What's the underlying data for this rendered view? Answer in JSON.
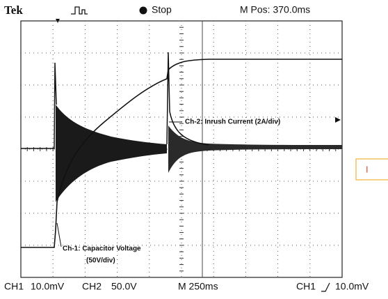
{
  "header": {
    "brand": "Tek",
    "status": "Stop",
    "position": "M Pos: 370.0ms"
  },
  "annotations": {
    "ch2": "Ch-2: Inrush Current (2A/div)",
    "ch1": "Ch-1: Capacitor Voltage",
    "ch1_scale": "(50V/div)"
  },
  "footer": {
    "ch1_label": "CH1",
    "ch1_scale": "10.0mV",
    "ch2_label": "CH2",
    "ch2_scale": "50.0V",
    "timebase": "M 250ms",
    "trigger_source": "CH1",
    "trigger_level": "10.0mV"
  },
  "side_label": "I"
}
